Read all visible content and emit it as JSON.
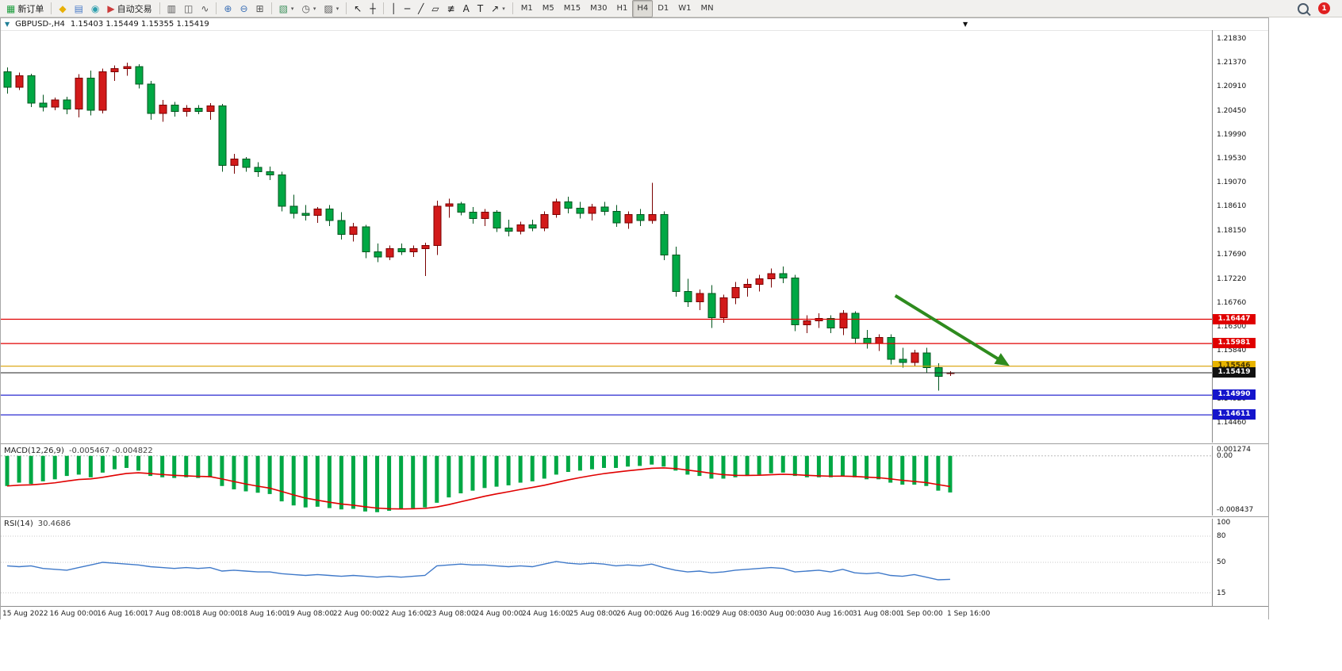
{
  "toolbar": {
    "groups": [
      {
        "items": [
          {
            "name": "new-order-button",
            "icon": "new-order-icon",
            "label": "新订单"
          }
        ]
      },
      {
        "items": [
          {
            "name": "alerts-button",
            "icon": "alert-icon"
          },
          {
            "name": "data-window-button",
            "icon": "profile-icon"
          },
          {
            "name": "community-button",
            "icon": "community-icon"
          },
          {
            "name": "autotrade-button",
            "icon": "autotrade-icon",
            "label": "自动交易"
          }
        ]
      },
      {
        "items": [
          {
            "name": "bar-chart-button",
            "icon": "bar-chart-icon"
          },
          {
            "name": "candlestick-chart-button",
            "icon": "candlestick-icon"
          },
          {
            "name": "line-chart-button",
            "icon": "line-chart-icon"
          }
        ]
      },
      {
        "items": [
          {
            "name": "zoom-in-button",
            "icon": "zoom-in-icon"
          },
          {
            "name": "zoom-out-button",
            "icon": "zoom-out-icon"
          },
          {
            "name": "tile-windows-button",
            "icon": "tile-windows-icon"
          }
        ]
      },
      {
        "items": [
          {
            "name": "new-chart-button",
            "icon": "new-chart-icon",
            "caret": true
          },
          {
            "name": "periods-button",
            "icon": "clock-icon",
            "caret": true
          },
          {
            "name": "templates-button",
            "icon": "templates-icon",
            "caret": true
          }
        ]
      },
      {
        "items": [
          {
            "name": "cursor-tool",
            "icon": "cursor-icon"
          },
          {
            "name": "crosshair-tool",
            "icon": "crosshair-icon"
          }
        ]
      },
      {
        "items": [
          {
            "name": "vertical-line-tool",
            "icon": "vline-icon"
          },
          {
            "name": "horizontal-line-tool",
            "icon": "hline-icon"
          },
          {
            "name": "trendline-tool",
            "icon": "trendline-icon"
          },
          {
            "name": "channel-tool",
            "icon": "channel-icon"
          },
          {
            "name": "fibonacci-tool",
            "icon": "fibonacci-icon"
          },
          {
            "name": "text-tool",
            "icon": "text-icon"
          },
          {
            "name": "label-tool",
            "icon": "label-icon"
          },
          {
            "name": "arrows-tool",
            "icon": "arrow-icon",
            "caret": true
          }
        ]
      }
    ],
    "timeframes": [
      "M1",
      "M5",
      "M15",
      "M30",
      "H1",
      "H4",
      "D1",
      "W1",
      "MN"
    ],
    "active_timeframe": "H4",
    "notification_count": "1"
  },
  "chart": {
    "title": "GBPUSD-,H4",
    "ohlc_text": "1.15403 1.15449 1.15355 1.15419"
  },
  "macd": {
    "label": "MACD(12,26,9)",
    "values_text": "-0.005467 -0.004822"
  },
  "rsi": {
    "label": "RSI(14)",
    "value_text": "30.4686"
  },
  "chart_data": [
    {
      "type": "candlestick",
      "symbol": "GBPUSD-",
      "timeframe": "H4",
      "current_bar": {
        "open": 1.15403,
        "high": 1.15449,
        "low": 1.15355,
        "close": 1.15419
      },
      "up_color": "#d21a1a",
      "down_color": "#00a844",
      "price_axis_labels": [
        "1.21830",
        "1.21370",
        "1.20910",
        "1.20450",
        "1.19990",
        "1.19530",
        "1.19070",
        "1.18610",
        "1.18150",
        "1.17690",
        "1.17220",
        "1.16760",
        "1.16300",
        "1.15840",
        "1.15380",
        "1.14920",
        "1.14460"
      ],
      "time_axis_labels": [
        "15 Aug 2022",
        "16 Aug 00:00",
        "16 Aug 16:00",
        "17 Aug 08:00",
        "18 Aug 00:00",
        "18 Aug 16:00",
        "19 Aug 08:00",
        "22 Aug 00:00",
        "22 Aug 16:00",
        "23 Aug 08:00",
        "24 Aug 00:00",
        "24 Aug 16:00",
        "25 Aug 08:00",
        "26 Aug 00:00",
        "26 Aug 16:00",
        "29 Aug 08:00",
        "30 Aug 00:00",
        "30 Aug 16:00",
        "31 Aug 08:00",
        "1 Sep 00:00",
        "1 Sep 16:00"
      ],
      "hlines": [
        {
          "value": 1.16447,
          "color": "#e00000",
          "label": "1.16447",
          "label_bg": "#e00000",
          "label_fg": "#ffffff"
        },
        {
          "value": 1.15981,
          "color": "#e00000",
          "label": "1.15981",
          "label_bg": "#e00000",
          "label_fg": "#ffffff"
        },
        {
          "value": 1.15546,
          "color": "#d8a000",
          "label": "1.15546",
          "label_bg": "#e8b400",
          "label_fg": "#4a3800"
        },
        {
          "value": 1.1499,
          "color": "#1414cc",
          "label": "1.14990",
          "label_bg": "#1414cc",
          "label_fg": "#ffffff"
        },
        {
          "value": 1.14611,
          "color": "#1414cc",
          "label": "1.14611",
          "label_bg": "#1414cc",
          "label_fg": "#ffffff"
        }
      ],
      "current_price": {
        "value": 1.15419,
        "label": "1.15419",
        "color": "#222222",
        "label_bg": "#111111",
        "label_fg": "#ffffff"
      },
      "trend_arrow": {
        "from_bar": 74.4,
        "from_price": 1.169,
        "to_bar": 83.7,
        "to_price": 1.1559,
        "color": "#2e8b1e"
      },
      "candles": [
        [
          1.212,
          1.2128,
          1.2078,
          1.209
        ],
        [
          1.209,
          1.2118,
          1.2085,
          1.2112
        ],
        [
          1.2112,
          1.2116,
          1.2052,
          1.206
        ],
        [
          1.206,
          1.2076,
          1.2044,
          1.2052
        ],
        [
          1.2052,
          1.207,
          1.2046,
          1.2066
        ],
        [
          1.2066,
          1.2072,
          1.2038,
          1.2048
        ],
        [
          1.2048,
          1.2115,
          1.2032,
          1.2108
        ],
        [
          1.2108,
          1.2122,
          1.2036,
          1.2046
        ],
        [
          1.2046,
          1.2126,
          1.204,
          1.212
        ],
        [
          1.212,
          1.2132,
          1.2102,
          1.2126
        ],
        [
          1.2126,
          1.2137,
          1.2112,
          1.213
        ],
        [
          1.213,
          1.2134,
          1.2088,
          1.2096
        ],
        [
          1.2096,
          1.2102,
          1.2028,
          1.204
        ],
        [
          1.204,
          1.2066,
          1.2024,
          1.2056
        ],
        [
          1.2056,
          1.2062,
          1.2034,
          1.2044
        ],
        [
          1.2044,
          1.2056,
          1.2034,
          1.205
        ],
        [
          1.205,
          1.2056,
          1.2038,
          1.2044
        ],
        [
          1.2044,
          1.206,
          1.2028,
          1.2054
        ],
        [
          1.2054,
          1.2058,
          1.1928,
          1.194
        ],
        [
          1.194,
          1.1962,
          1.1924,
          1.1952
        ],
        [
          1.1952,
          1.1956,
          1.1928,
          1.1936
        ],
        [
          1.1936,
          1.1946,
          1.1918,
          1.1928
        ],
        [
          1.1928,
          1.1938,
          1.1912,
          1.1922
        ],
        [
          1.1922,
          1.1928,
          1.1852,
          1.1862
        ],
        [
          1.1862,
          1.1884,
          1.1838,
          1.1848
        ],
        [
          1.1848,
          1.1864,
          1.1834,
          1.1844
        ],
        [
          1.1844,
          1.186,
          1.183,
          1.1856
        ],
        [
          1.1856,
          1.1864,
          1.1824,
          1.1834
        ],
        [
          1.1834,
          1.185,
          1.1798,
          1.1808
        ],
        [
          1.1808,
          1.183,
          1.1794,
          1.1822
        ],
        [
          1.1822,
          1.1826,
          1.1762,
          1.1774
        ],
        [
          1.1774,
          1.179,
          1.1754,
          1.1764
        ],
        [
          1.1764,
          1.1786,
          1.1758,
          1.178
        ],
        [
          1.178,
          1.179,
          1.1768,
          1.1774
        ],
        [
          1.1774,
          1.1786,
          1.1764,
          1.178
        ],
        [
          1.178,
          1.1792,
          1.1728,
          1.1786
        ],
        [
          1.1786,
          1.1872,
          1.1768,
          1.1862
        ],
        [
          1.1862,
          1.1876,
          1.184,
          1.1866
        ],
        [
          1.1866,
          1.187,
          1.1844,
          1.185
        ],
        [
          1.185,
          1.186,
          1.1828,
          1.1838
        ],
        [
          1.1838,
          1.1856,
          1.1824,
          1.185
        ],
        [
          1.185,
          1.1854,
          1.1812,
          1.182
        ],
        [
          1.182,
          1.1836,
          1.1804,
          1.1814
        ],
        [
          1.1814,
          1.1832,
          1.1808,
          1.1826
        ],
        [
          1.1826,
          1.1836,
          1.1814,
          1.182
        ],
        [
          1.182,
          1.1852,
          1.1814,
          1.1846
        ],
        [
          1.1846,
          1.1876,
          1.184,
          1.187
        ],
        [
          1.187,
          1.188,
          1.1848,
          1.1858
        ],
        [
          1.1858,
          1.187,
          1.1838,
          1.1848
        ],
        [
          1.1848,
          1.1866,
          1.1834,
          1.186
        ],
        [
          1.186,
          1.187,
          1.1844,
          1.1852
        ],
        [
          1.1852,
          1.1864,
          1.1822,
          1.183
        ],
        [
          1.183,
          1.1852,
          1.1818,
          1.1846
        ],
        [
          1.1846,
          1.1856,
          1.1824,
          1.1834
        ],
        [
          1.1834,
          1.1907,
          1.1828,
          1.1846
        ],
        [
          1.1846,
          1.1852,
          1.1758,
          1.1768
        ],
        [
          1.1768,
          1.1784,
          1.1688,
          1.1698
        ],
        [
          1.1698,
          1.1722,
          1.1668,
          1.1678
        ],
        [
          1.1678,
          1.1702,
          1.1662,
          1.1694
        ],
        [
          1.1694,
          1.171,
          1.1628,
          1.1648
        ],
        [
          1.1648,
          1.1692,
          1.1638,
          1.1686
        ],
        [
          1.1686,
          1.1716,
          1.1674,
          1.1706
        ],
        [
          1.1706,
          1.1722,
          1.1688,
          1.1712
        ],
        [
          1.1712,
          1.173,
          1.1698,
          1.1722
        ],
        [
          1.1722,
          1.1742,
          1.1706,
          1.1732
        ],
        [
          1.1732,
          1.1746,
          1.1714,
          1.1724
        ],
        [
          1.1724,
          1.173,
          1.1622,
          1.1634
        ],
        [
          1.1634,
          1.1652,
          1.1618,
          1.1642
        ],
        [
          1.1642,
          1.1656,
          1.1628,
          1.1646
        ],
        [
          1.1646,
          1.1652,
          1.1618,
          1.1628
        ],
        [
          1.1628,
          1.1662,
          1.1614,
          1.1656
        ],
        [
          1.1656,
          1.166,
          1.1598,
          1.1608
        ],
        [
          1.1608,
          1.1624,
          1.1588,
          1.1598
        ],
        [
          1.1598,
          1.1616,
          1.1584,
          1.161
        ],
        [
          1.161,
          1.1616,
          1.1558,
          1.1568
        ],
        [
          1.1568,
          1.159,
          1.1552,
          1.1562
        ],
        [
          1.1562,
          1.1586,
          1.1554,
          1.158
        ],
        [
          1.158,
          1.159,
          1.1542,
          1.1552
        ],
        [
          1.1552,
          1.156,
          1.1508,
          1.1535
        ],
        [
          1.15403,
          1.15449,
          1.15355,
          1.15419
        ]
      ]
    },
    {
      "type": "bar",
      "name": "MACD",
      "params": "12,26,9",
      "current_values": [
        -0.005467,
        -0.004822
      ],
      "histogram_color": "#00a844",
      "signal_color": "#e00000",
      "axis_labels": [
        "0.001274",
        "0.00",
        "-0.008437"
      ],
      "ymax": 0.001274,
      "ymin": -0.008437,
      "values": [
        -0.0045,
        -0.004,
        -0.0042,
        -0.0038,
        -0.0035,
        -0.003,
        -0.0028,
        -0.0032,
        -0.0025,
        -0.002,
        -0.0018,
        -0.0022,
        -0.003,
        -0.0032,
        -0.0033,
        -0.0032,
        -0.0033,
        -0.0032,
        -0.0045,
        -0.005,
        -0.0053,
        -0.0055,
        -0.0057,
        -0.0068,
        -0.0074,
        -0.0077,
        -0.0076,
        -0.0078,
        -0.008,
        -0.0079,
        -0.0083,
        -0.0084,
        -0.0082,
        -0.008,
        -0.0078,
        -0.0077,
        -0.007,
        -0.0062,
        -0.0056,
        -0.0052,
        -0.0048,
        -0.0046,
        -0.0044,
        -0.004,
        -0.0038,
        -0.0034,
        -0.0028,
        -0.0024,
        -0.0022,
        -0.002,
        -0.0018,
        -0.0018,
        -0.0016,
        -0.0015,
        -0.0013,
        -0.0016,
        -0.0022,
        -0.0028,
        -0.003,
        -0.0034,
        -0.0034,
        -0.0032,
        -0.003,
        -0.0028,
        -0.0026,
        -0.0025,
        -0.003,
        -0.0032,
        -0.0032,
        -0.0032,
        -0.003,
        -0.0032,
        -0.0035,
        -0.0035,
        -0.004,
        -0.0043,
        -0.0043,
        -0.0045,
        -0.0052,
        -0.005467
      ]
    },
    {
      "type": "line",
      "name": "RSI",
      "params": "14",
      "current_value": 30.4686,
      "line_color": "#3f79c9",
      "axis_labels": [
        "100",
        "80",
        "50",
        "15"
      ],
      "levels": [
        80,
        50,
        15
      ],
      "ymax": 100,
      "ymin": 0,
      "values": [
        46,
        45,
        46,
        43,
        42,
        41,
        44,
        47,
        50,
        49,
        48,
        47,
        45,
        44,
        43,
        44,
        43,
        44,
        40,
        41,
        40,
        39,
        39,
        37,
        36,
        35,
        36,
        35,
        34,
        35,
        34,
        33,
        34,
        33,
        34,
        35,
        46,
        47,
        48,
        47,
        47,
        46,
        45,
        46,
        45,
        48,
        51,
        49,
        48,
        49,
        48,
        46,
        47,
        46,
        48,
        44,
        41,
        39,
        40,
        38,
        39,
        41,
        42,
        43,
        44,
        43,
        39,
        40,
        41,
        39,
        42,
        38,
        37,
        38,
        35,
        34,
        36,
        33,
        30,
        30.4686
      ]
    }
  ]
}
